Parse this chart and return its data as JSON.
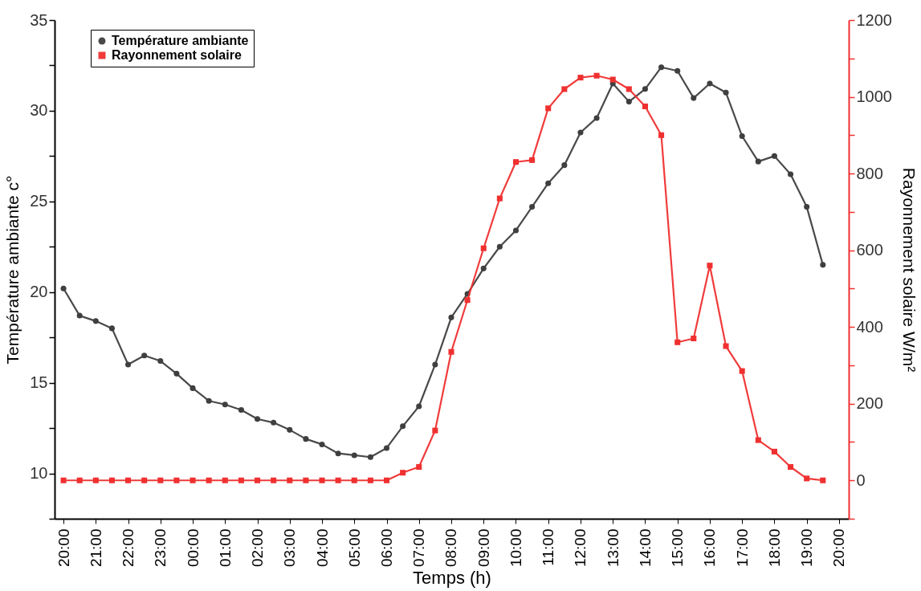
{
  "chart_data": {
    "type": "line",
    "xlabel": "Temps (h)",
    "ylabel": "Température ambiante c°",
    "y2label": "Rayonnement solaire W/m²",
    "categories": [
      "20:00",
      null,
      "21:00",
      null,
      "22:00",
      null,
      "23:00",
      null,
      "00:00",
      null,
      "01:00",
      null,
      "02:00",
      null,
      "03:00",
      null,
      "04:00",
      null,
      "05:00",
      null,
      "06:00",
      null,
      "07:00",
      null,
      "08:00",
      null,
      "09:00",
      null,
      "10:00",
      null,
      "11:00",
      null,
      "12:00",
      null,
      "13:00",
      null,
      "14:00",
      null,
      "15:00",
      null,
      "16:00",
      null,
      "17:00",
      null,
      "18:00",
      null,
      "19:00",
      null,
      "20:00"
    ],
    "series": [
      {
        "name": "Température ambiante",
        "color": "#3f3f3f",
        "marker": "circle",
        "values": [
          20.2,
          18.7,
          18.4,
          18.0,
          16.0,
          16.5,
          16.2,
          15.5,
          14.7,
          14.0,
          13.8,
          13.5,
          13.0,
          12.8,
          12.4,
          11.9,
          11.6,
          11.1,
          11.0,
          10.9,
          11.4,
          12.6,
          13.7,
          16.0,
          18.6,
          19.9,
          21.3,
          22.5,
          23.4,
          24.7,
          26.0,
          27.0,
          28.8,
          29.6,
          31.5,
          30.5,
          31.2,
          32.4,
          32.2,
          30.7,
          31.5,
          31.0,
          28.6,
          27.2,
          27.5,
          26.5,
          24.7,
          21.5,
          null
        ]
      },
      {
        "name": "Rayonnement solaire",
        "color": "#f03030",
        "marker": "square",
        "axis": "y2",
        "values": [
          0,
          0,
          0,
          0,
          0,
          0,
          0,
          0,
          0,
          0,
          0,
          0,
          0,
          0,
          0,
          0,
          0,
          0,
          0,
          0,
          0,
          20,
          35,
          130,
          335,
          470,
          605,
          735,
          830,
          835,
          970,
          1020,
          1050,
          1055,
          1045,
          1020,
          975,
          900,
          360,
          370,
          560,
          350,
          285,
          105,
          75,
          35,
          5,
          0,
          null
        ]
      }
    ],
    "ylim": [
      7.5,
      35
    ],
    "yticks": [
      {
        "value": 7.5,
        "label": null
      },
      10,
      {
        "value": 12.5,
        "label": null
      },
      15,
      {
        "value": 17.5,
        "label": null
      },
      20,
      {
        "value": 22.5,
        "label": null
      },
      25,
      {
        "value": 27.5,
        "label": null
      },
      30,
      {
        "value": 32.5,
        "label": null
      },
      35
    ],
    "y2lim": [
      -100,
      1200
    ],
    "y2ticks": [
      {
        "value": -100,
        "label": null
      },
      0,
      {
        "value": 100,
        "label": null
      },
      200,
      {
        "value": 300,
        "label": null
      },
      400,
      {
        "value": 500,
        "label": null
      },
      600,
      {
        "value": 700,
        "label": null
      },
      800,
      {
        "value": 900,
        "label": null
      },
      1000,
      {
        "value": 1100,
        "label": null
      },
      1200
    ],
    "grid": false,
    "legend": "top left"
  }
}
